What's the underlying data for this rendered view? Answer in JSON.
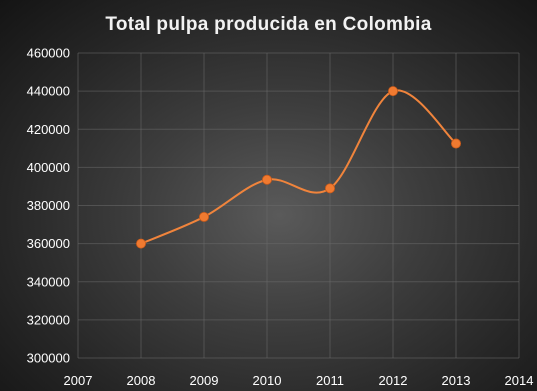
{
  "chart_data": {
    "type": "line",
    "title": "Total pulpa producida en Colombia",
    "xlabel": "",
    "ylabel": "",
    "x": [
      2008,
      2009,
      2010,
      2011,
      2012,
      2013
    ],
    "series": [
      {
        "values": [
          360000,
          374000,
          393500,
          389000,
          440000,
          412500
        ]
      }
    ],
    "xlim": [
      2007,
      2014
    ],
    "ylim": [
      300000,
      460000
    ],
    "x_ticks": [
      2007,
      2008,
      2009,
      2010,
      2011,
      2012,
      2013,
      2014
    ],
    "y_ticks": [
      300000,
      320000,
      340000,
      360000,
      380000,
      400000,
      420000,
      440000,
      460000
    ],
    "grid": true,
    "smooth": true,
    "legend": "none",
    "colors": {
      "line": "#f0843c",
      "marker": "#f07a30",
      "grid": "#6a6a6a",
      "text": "#ffffff",
      "title": "#f2f2f2"
    }
  }
}
